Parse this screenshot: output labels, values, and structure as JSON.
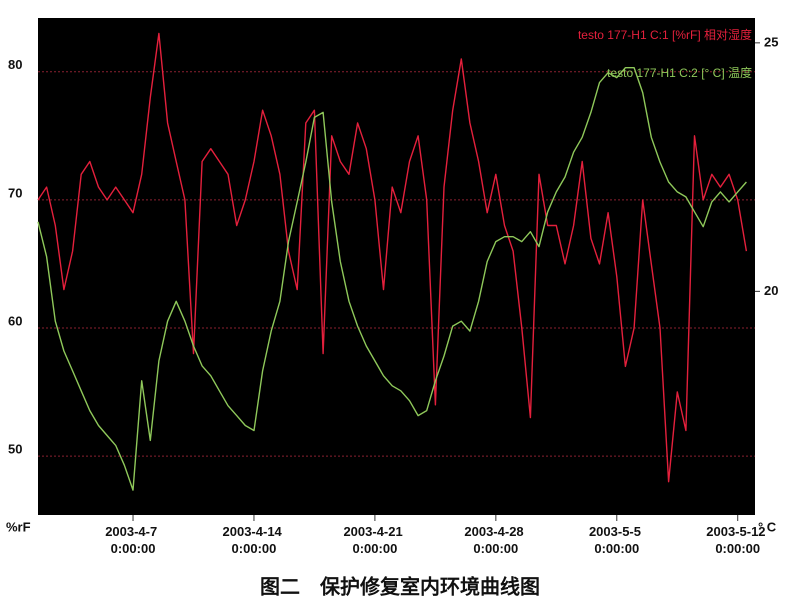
{
  "chart_data": {
    "type": "line",
    "caption": "图二　保护修复室内环境曲线图",
    "ylabel": "%rF",
    "y2label": "° C",
    "legend": "top-right",
    "grid": true,
    "background": "#000000",
    "x": [
      "2003-4-1 12:00:00",
      "2003-4-2 0:00:00",
      "2003-4-2 12:00:00",
      "2003-4-3 0:00:00",
      "2003-4-3 12:00:00",
      "2003-4-4 0:00:00",
      "2003-4-4 12:00:00",
      "2003-4-5 0:00:00",
      "2003-4-5 12:00:00",
      "2003-4-6 0:00:00",
      "2003-4-6 12:00:00",
      "2003-4-7 0:00:00",
      "2003-4-7 12:00:00",
      "2003-4-8 0:00:00",
      "2003-4-8 12:00:00",
      "2003-4-9 0:00:00",
      "2003-4-9 12:00:00",
      "2003-4-10 0:00:00",
      "2003-4-10 12:00:00",
      "2003-4-11 0:00:00",
      "2003-4-11 12:00:00",
      "2003-4-12 0:00:00",
      "2003-4-12 12:00:00",
      "2003-4-13 0:00:00",
      "2003-4-13 12:00:00",
      "2003-4-14 0:00:00",
      "2003-4-14 12:00:00",
      "2003-4-15 0:00:00",
      "2003-4-15 12:00:00",
      "2003-4-16 0:00:00",
      "2003-4-16 12:00:00",
      "2003-4-17 0:00:00",
      "2003-4-17 12:00:00",
      "2003-4-18 0:00:00",
      "2003-4-18 12:00:00",
      "2003-4-19 0:00:00",
      "2003-4-19 12:00:00",
      "2003-4-20 0:00:00",
      "2003-4-20 12:00:00",
      "2003-4-21 0:00:00",
      "2003-4-21 12:00:00",
      "2003-4-22 0:00:00",
      "2003-4-22 12:00:00",
      "2003-4-23 0:00:00",
      "2003-4-23 12:00:00",
      "2003-4-24 0:00:00",
      "2003-4-24 12:00:00",
      "2003-4-25 0:00:00",
      "2003-4-25 12:00:00",
      "2003-4-26 0:00:00",
      "2003-4-26 12:00:00",
      "2003-4-27 0:00:00",
      "2003-4-27 12:00:00",
      "2003-4-28 0:00:00",
      "2003-4-28 12:00:00",
      "2003-4-29 0:00:00",
      "2003-4-29 12:00:00",
      "2003-4-30 0:00:00",
      "2003-4-30 12:00:00",
      "2003-5-1 0:00:00",
      "2003-5-1 12:00:00",
      "2003-5-2 0:00:00",
      "2003-5-2 12:00:00",
      "2003-5-3 0:00:00",
      "2003-5-3 12:00:00",
      "2003-5-4 0:00:00",
      "2003-5-4 12:00:00",
      "2003-5-5 0:00:00",
      "2003-5-5 12:00:00",
      "2003-5-6 0:00:00",
      "2003-5-6 12:00:00",
      "2003-5-7 0:00:00",
      "2003-5-7 12:00:00",
      "2003-5-8 0:00:00",
      "2003-5-8 12:00:00",
      "2003-5-9 0:00:00",
      "2003-5-9 12:00:00",
      "2003-5-10 0:00:00",
      "2003-5-10 12:00:00",
      "2003-5-11 0:00:00",
      "2003-5-11 12:00:00",
      "2003-5-12 0:00:00",
      "2003-5-12 12:00:00"
    ],
    "xlim": [
      "2003-4-1 12:00:00",
      "2003-5-13 0:00:00"
    ],
    "xticks": [
      "2003-4-7 0:00:00",
      "2003-4-14 0:00:00",
      "2003-4-21 0:00:00",
      "2003-4-28 0:00:00",
      "2003-5-5 0:00:00",
      "2003-5-12 0:00:00"
    ],
    "ylim": [
      45.4,
      84.2
    ],
    "yticks": [
      50,
      60,
      70,
      80
    ],
    "y2lim": [
      15.5,
      25.5
    ],
    "y2ticks": [
      20,
      25
    ],
    "series": [
      {
        "name": "testo 177-H1 C:1 [%rF] 相对湿度",
        "color": "#e4203c",
        "values": [
          70,
          71,
          68,
          63,
          66,
          72,
          73,
          71,
          70,
          71,
          70,
          69,
          72,
          78,
          83,
          76,
          73,
          70,
          58,
          73,
          74,
          73,
          72,
          68,
          70,
          73,
          77,
          75,
          72,
          66,
          63,
          76,
          77,
          58,
          75,
          73,
          72,
          76,
          74,
          70,
          63,
          71,
          69,
          73,
          75,
          70,
          54,
          71,
          77,
          81,
          76,
          73,
          69,
          72,
          68,
          66,
          60,
          53,
          72,
          68,
          68,
          65,
          68,
          73,
          67,
          65,
          69,
          64,
          57,
          60,
          70,
          65,
          60,
          48,
          55,
          52,
          75,
          70,
          72,
          71,
          72,
          70,
          66
        ]
      },
      {
        "name": "testo 177-H1 C:2 [° C] 温度",
        "color": "#8fc85a",
        "axis": "y2",
        "values": [
          21.4,
          20.7,
          19.4,
          18.8,
          18.4,
          18.0,
          17.6,
          17.3,
          17.1,
          16.9,
          16.5,
          16.0,
          18.2,
          17.0,
          18.6,
          19.4,
          19.8,
          19.4,
          18.9,
          18.5,
          18.3,
          18.0,
          17.7,
          17.5,
          17.3,
          17.2,
          18.4,
          19.2,
          19.8,
          21.0,
          21.8,
          22.6,
          23.5,
          23.6,
          21.8,
          20.6,
          19.8,
          19.3,
          18.9,
          18.6,
          18.3,
          18.1,
          18.0,
          17.8,
          17.5,
          17.6,
          18.2,
          18.7,
          19.3,
          19.4,
          19.2,
          19.8,
          20.6,
          21.0,
          21.1,
          21.1,
          21.0,
          21.2,
          20.9,
          21.6,
          22.0,
          22.3,
          22.8,
          23.1,
          23.6,
          24.2,
          24.4,
          24.3,
          24.5,
          24.5,
          24.0,
          23.1,
          22.6,
          22.2,
          22.0,
          21.9,
          21.6,
          21.3,
          21.8,
          22.0,
          21.8,
          22.0,
          22.2
        ]
      }
    ]
  }
}
